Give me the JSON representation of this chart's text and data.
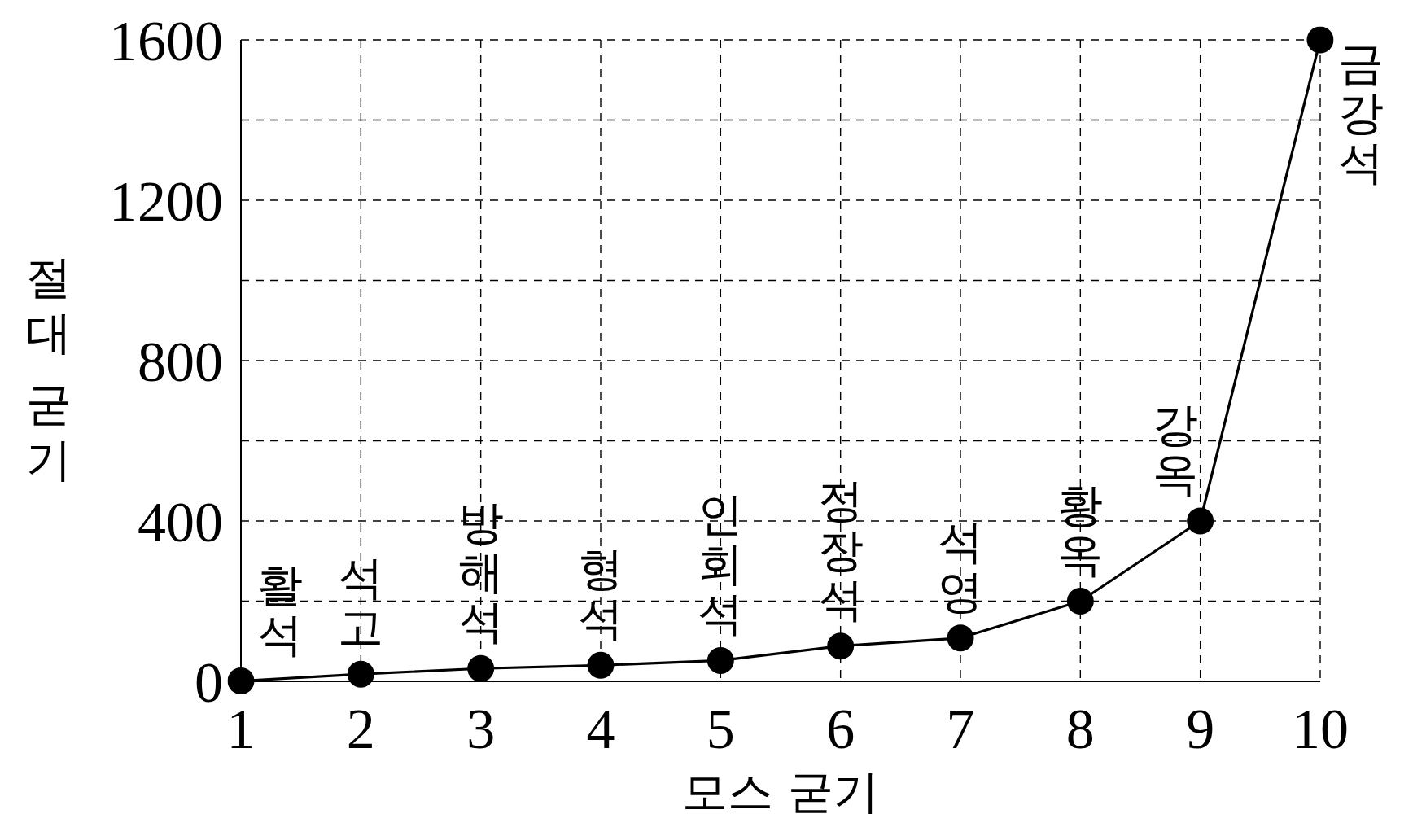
{
  "chart_data": {
    "type": "line",
    "xlabel": "모스 굳기",
    "ylabel": "절대 굳기",
    "x": [
      1,
      2,
      3,
      4,
      5,
      6,
      7,
      8,
      9,
      10
    ],
    "values": [
      1,
      18,
      32,
      40,
      52,
      88,
      108,
      200,
      400,
      1600
    ],
    "color": "#000000",
    "xlim": [
      1,
      10
    ],
    "xticks": [
      1,
      2,
      3,
      4,
      5,
      6,
      7,
      8,
      9,
      10
    ],
    "ylim": [
      0,
      1600
    ],
    "yticks": [
      0,
      {
        "value": 200,
        "label": null
      },
      400,
      {
        "value": 600,
        "label": null
      },
      800,
      {
        "value": 1000,
        "label": null
      },
      1200,
      {
        "value": 1400,
        "label": null
      },
      1600
    ],
    "grid": true,
    "marker": "circle",
    "line_style": "solid",
    "annotations": [
      {
        "text": "활석",
        "x": 1,
        "y": 1
      },
      {
        "text": "석고",
        "x": 2,
        "y": 18
      },
      {
        "text": "방해석",
        "x": 3,
        "y": 32
      },
      {
        "text": "형석",
        "x": 4,
        "y": 40
      },
      {
        "text": "인회석",
        "x": 5,
        "y": 52
      },
      {
        "text": "정장석",
        "x": 6,
        "y": 88
      },
      {
        "text": "석영",
        "x": 7,
        "y": 108
      },
      {
        "text": "황옥",
        "x": 8,
        "y": 200
      },
      {
        "text": "강옥",
        "x": 9,
        "y": 400
      },
      {
        "text": "금강석",
        "x": 10,
        "y": 1600
      }
    ]
  }
}
